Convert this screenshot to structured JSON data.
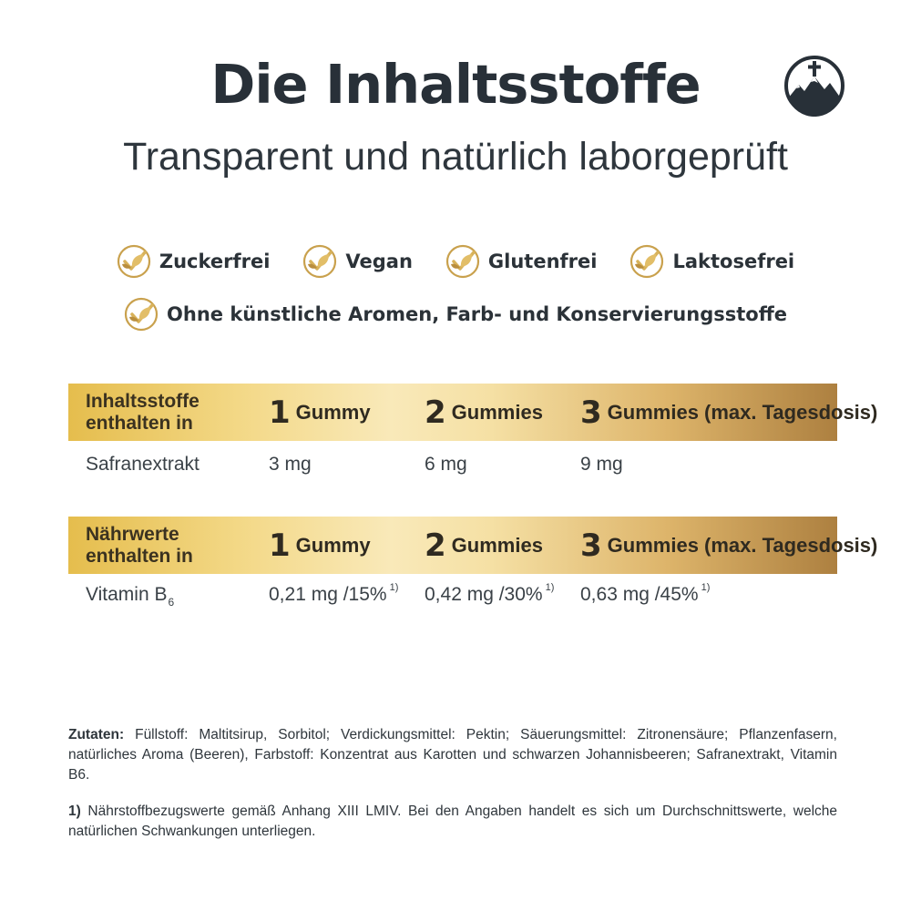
{
  "header": {
    "title": "Die Inhaltsstoffe",
    "subtitle": "Transparent und natürlich laborgeprüft"
  },
  "colors": {
    "text": "#2b3238",
    "gold_light": "#f9e9b9",
    "gold_mid": "#e5bd4d",
    "gold_dark": "#ad8040"
  },
  "badges": {
    "icon": "gold-leaf-check-icon",
    "row1": [
      "Zuckerfrei",
      "Vegan",
      "Glutenfrei",
      "Laktosefrei"
    ],
    "row2": [
      "Ohne künstliche Aromen, Farb- und Konservierungsstoffe"
    ]
  },
  "tables": [
    {
      "header_label_line1": "Inhaltsstoffe",
      "header_label_line2": "enthalten in",
      "columns": [
        {
          "number": "1",
          "text": "Gummy"
        },
        {
          "number": "2",
          "text": "Gummies"
        },
        {
          "number": "3",
          "text": "Gummies (max. Tagesdosis)"
        }
      ],
      "row": {
        "name": "Safranextrakt",
        "values": [
          "3 mg",
          "6 mg",
          "9 mg"
        ]
      }
    },
    {
      "header_label_line1": "Nährwerte",
      "header_label_line2": "enthalten in",
      "columns": [
        {
          "number": "1",
          "text": "Gummy"
        },
        {
          "number": "2",
          "text": "Gummies"
        },
        {
          "number": "3",
          "text": "Gummies (max. Tagesdosis)"
        }
      ],
      "row": {
        "name": "Vitamin B",
        "name_subscript": "6",
        "values": [
          "0,21 mg /15%",
          "0,42 mg /30%",
          "0,63 mg /45%"
        ],
        "footnote_marker": "1)"
      }
    }
  ],
  "ingredients": {
    "label": "Zutaten:",
    "text": " Füllstoff: Maltitsirup, Sorbitol; Verdickungsmittel: Pektin; Säuerungsmittel: Zitronensäure; Pflanzenfasern, natürliches Aroma (Beeren), Farbstoff: Konzentrat aus Karotten und schwarzen Johannisbeeren; Safranextrakt, Vitamin B6."
  },
  "footnote": {
    "label": "1)",
    "text": " Nährstoffbezugswerte gemäß Anhang XIII LMIV. Bei den Angaben handelt es sich um Durchschnittswerte, welche natürlichen Schwankungen unterliegen."
  }
}
